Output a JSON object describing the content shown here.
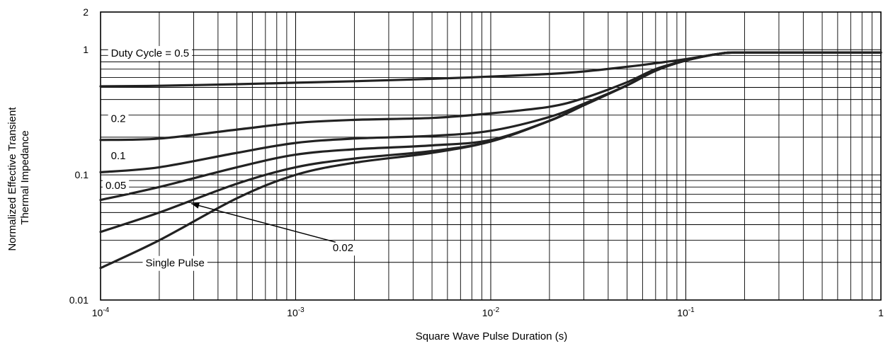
{
  "chart_data": {
    "type": "line",
    "xlabel": "Square Wave Pulse Duration (s)",
    "ylabel": [
      "Normalized Effective Transient",
      "Thermal Impedance"
    ],
    "xscale": "log",
    "yscale": "log",
    "xlim": [
      0.0001,
      1
    ],
    "ylim": [
      0.01,
      2
    ],
    "grid": true,
    "x_ticks": [
      {
        "base": "10",
        "exp": "-4",
        "value": 0.0001
      },
      {
        "base": "10",
        "exp": "-3",
        "value": 0.001
      },
      {
        "base": "10",
        "exp": "-2",
        "value": 0.01
      },
      {
        "base": "10",
        "exp": "-1",
        "value": 0.1
      },
      {
        "base": "1",
        "exp": "",
        "value": 1
      }
    ],
    "y_ticks": [
      {
        "label": "2",
        "value": 2
      },
      {
        "label": "1",
        "value": 1
      },
      {
        "label": "0.1",
        "value": 0.1
      },
      {
        "label": "0.01",
        "value": 0.01
      }
    ],
    "series": [
      {
        "name": "Duty Cycle = 0.5",
        "points": [
          [
            0.0001,
            0.51
          ],
          [
            0.0002,
            0.515
          ],
          [
            0.0005,
            0.53
          ],
          [
            0.001,
            0.545
          ],
          [
            0.002,
            0.56
          ],
          [
            0.005,
            0.585
          ],
          [
            0.01,
            0.61
          ],
          [
            0.02,
            0.64
          ],
          [
            0.03,
            0.67
          ],
          [
            0.05,
            0.73
          ],
          [
            0.07,
            0.78
          ],
          [
            0.1,
            0.84
          ],
          [
            0.15,
            0.93
          ],
          [
            0.2,
            0.95
          ],
          [
            0.5,
            0.95
          ],
          [
            1,
            0.95
          ]
        ]
      },
      {
        "name": "0.2",
        "points": [
          [
            0.0001,
            0.19
          ],
          [
            0.0002,
            0.195
          ],
          [
            0.0005,
            0.23
          ],
          [
            0.001,
            0.26
          ],
          [
            0.002,
            0.275
          ],
          [
            0.005,
            0.285
          ],
          [
            0.01,
            0.31
          ],
          [
            0.02,
            0.35
          ],
          [
            0.03,
            0.41
          ],
          [
            0.05,
            0.55
          ],
          [
            0.07,
            0.7
          ],
          [
            0.1,
            0.82
          ],
          [
            0.15,
            0.93
          ],
          [
            0.2,
            0.95
          ],
          [
            0.5,
            0.95
          ],
          [
            1,
            0.95
          ]
        ]
      },
      {
        "name": "0.1",
        "points": [
          [
            0.0001,
            0.105
          ],
          [
            0.0002,
            0.115
          ],
          [
            0.0005,
            0.15
          ],
          [
            0.001,
            0.18
          ],
          [
            0.002,
            0.195
          ],
          [
            0.005,
            0.205
          ],
          [
            0.01,
            0.225
          ],
          [
            0.02,
            0.29
          ],
          [
            0.03,
            0.37
          ],
          [
            0.05,
            0.52
          ],
          [
            0.07,
            0.68
          ],
          [
            0.1,
            0.82
          ],
          [
            0.15,
            0.93
          ],
          [
            0.2,
            0.95
          ],
          [
            0.5,
            0.95
          ],
          [
            1,
            0.95
          ]
        ]
      },
      {
        "name": "0.05",
        "points": [
          [
            0.0001,
            0.063
          ],
          [
            0.0002,
            0.08
          ],
          [
            0.0005,
            0.115
          ],
          [
            0.001,
            0.145
          ],
          [
            0.002,
            0.16
          ],
          [
            0.005,
            0.172
          ],
          [
            0.01,
            0.19
          ],
          [
            0.02,
            0.27
          ],
          [
            0.03,
            0.36
          ],
          [
            0.05,
            0.52
          ],
          [
            0.07,
            0.68
          ],
          [
            0.1,
            0.82
          ],
          [
            0.15,
            0.93
          ],
          [
            0.2,
            0.95
          ],
          [
            0.5,
            0.95
          ],
          [
            1,
            0.95
          ]
        ]
      },
      {
        "name": "0.02",
        "points": [
          [
            0.0001,
            0.035
          ],
          [
            0.0002,
            0.05
          ],
          [
            0.0005,
            0.085
          ],
          [
            0.001,
            0.115
          ],
          [
            0.002,
            0.135
          ],
          [
            0.005,
            0.155
          ],
          [
            0.01,
            0.185
          ],
          [
            0.02,
            0.27
          ],
          [
            0.03,
            0.36
          ],
          [
            0.05,
            0.52
          ],
          [
            0.07,
            0.68
          ],
          [
            0.1,
            0.82
          ],
          [
            0.15,
            0.93
          ],
          [
            0.2,
            0.95
          ],
          [
            0.5,
            0.95
          ],
          [
            1,
            0.95
          ]
        ]
      },
      {
        "name": "Single Pulse",
        "points": [
          [
            0.0001,
            0.018
          ],
          [
            0.0002,
            0.03
          ],
          [
            0.0005,
            0.065
          ],
          [
            0.001,
            0.1
          ],
          [
            0.002,
            0.125
          ],
          [
            0.005,
            0.15
          ],
          [
            0.01,
            0.185
          ],
          [
            0.02,
            0.27
          ],
          [
            0.03,
            0.36
          ],
          [
            0.05,
            0.52
          ],
          [
            0.07,
            0.68
          ],
          [
            0.1,
            0.82
          ],
          [
            0.15,
            0.93
          ],
          [
            0.2,
            0.95
          ],
          [
            0.5,
            0.95
          ],
          [
            1,
            0.95
          ]
        ]
      }
    ]
  }
}
